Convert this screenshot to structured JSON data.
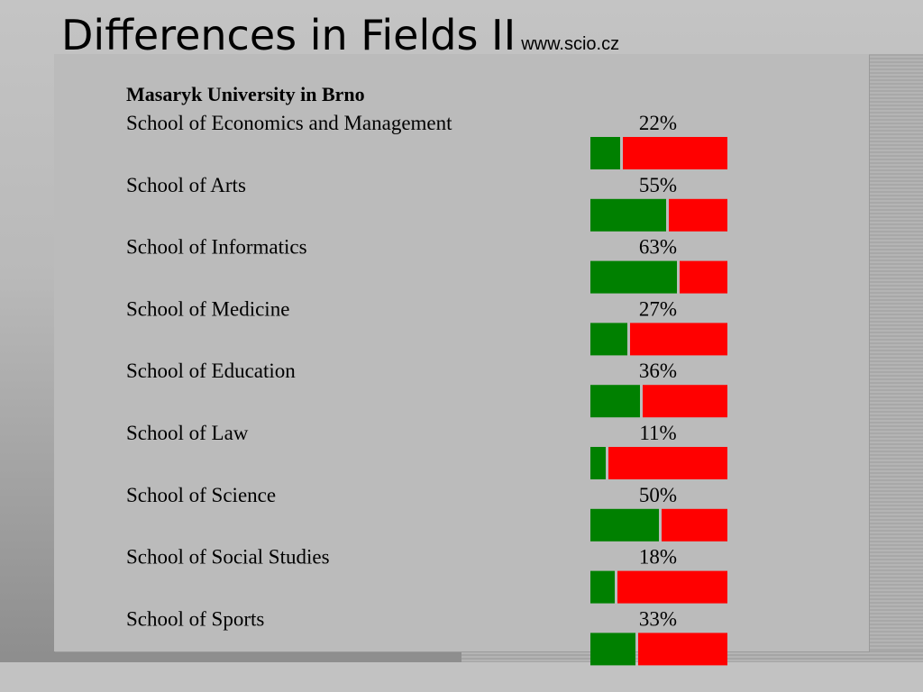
{
  "slide": {
    "title": "Differences in Fields II",
    "source": "www.scio.cz"
  },
  "chart_data": {
    "type": "bar",
    "title": "Masaryk University in Brno",
    "categories": [
      "School of Economics and Management",
      "School of Arts",
      "School of Informatics",
      "School of Medicine",
      "School of Education",
      "School of Law",
      "School of Science",
      "School of Social Studies",
      "School of Sports"
    ],
    "values": [
      22,
      55,
      63,
      27,
      36,
      11,
      50,
      18,
      33
    ],
    "labels": [
      "22%",
      "55%",
      "63%",
      "27%",
      "36%",
      "11%",
      "50%",
      "18%",
      "33%"
    ],
    "ylim": [
      0,
      100
    ],
    "colors": {
      "value": "#008000",
      "remainder": "#ff0000"
    }
  }
}
